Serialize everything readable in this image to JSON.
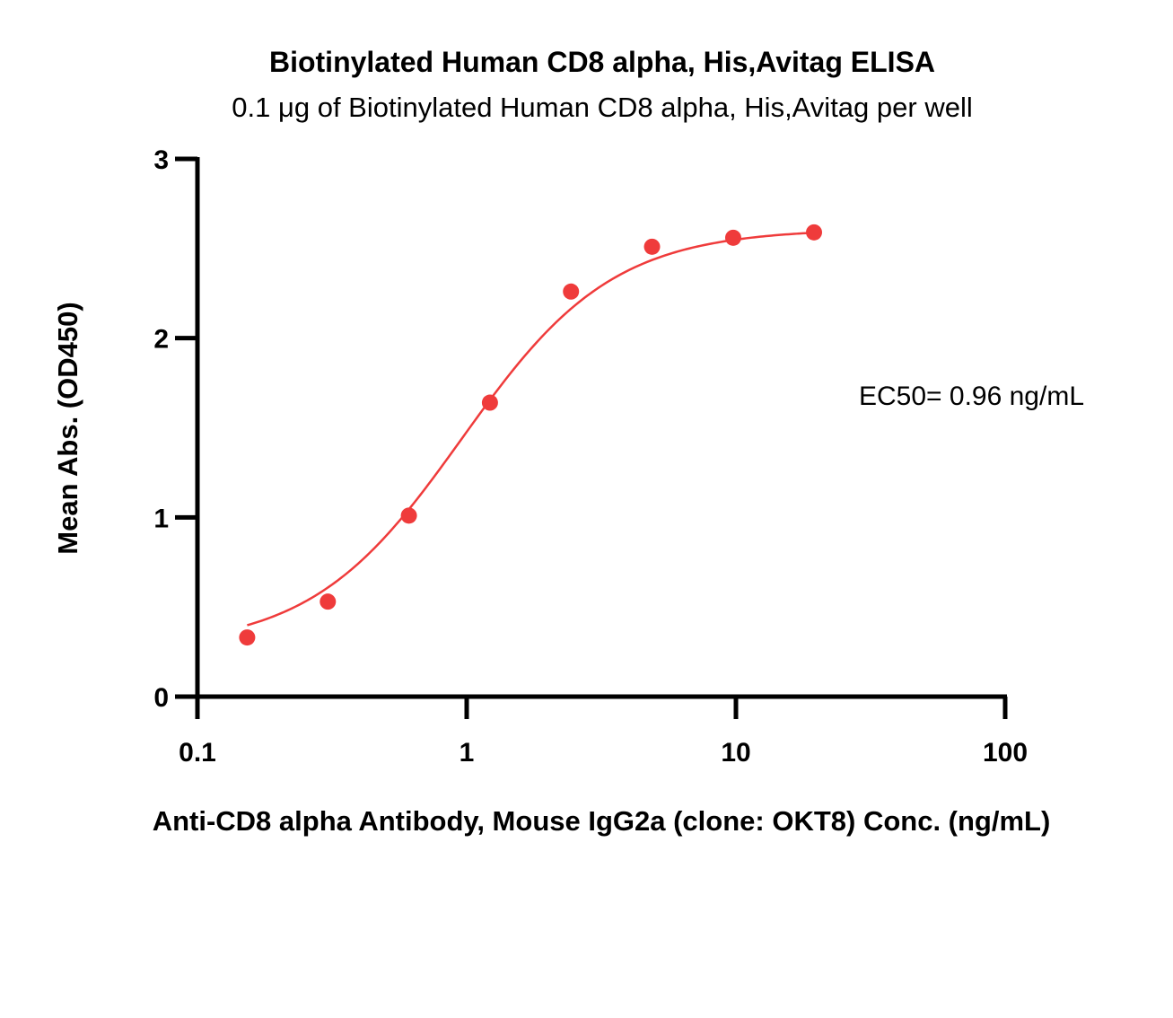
{
  "chart_data": {
    "type": "scatter",
    "title": "Biotinylated Human CD8 alpha, His,Avitag ELISA",
    "subtitle": "0.1 μg of Biotinylated Human CD8 alpha, His,Avitag per well",
    "xlabel": "Anti-CD8 alpha Antibody, Mouse IgG2a (clone: OKT8) Conc. (ng/mL)",
    "ylabel": "Mean Abs. (OD450)",
    "xscale": "log",
    "xlim": [
      0.1,
      100
    ],
    "ylim": [
      0,
      3
    ],
    "xticks": [
      "0.1",
      "1",
      "10",
      "100"
    ],
    "yticks": [
      "0",
      "1",
      "2",
      "3"
    ],
    "grid": false,
    "annotation": "EC50= 0.96 ng/mL",
    "color": "#ef3b3b",
    "series": [
      {
        "x": [
          0.153,
          0.305,
          0.61,
          1.22,
          2.44,
          4.88,
          9.77,
          19.5
        ],
        "y": [
          0.33,
          0.53,
          1.01,
          1.64,
          2.26,
          2.51,
          2.56,
          2.59
        ]
      }
    ],
    "fit": {
      "bottom": 0.27,
      "top": 2.61,
      "ec50": 0.96,
      "hill": 1.55
    }
  }
}
